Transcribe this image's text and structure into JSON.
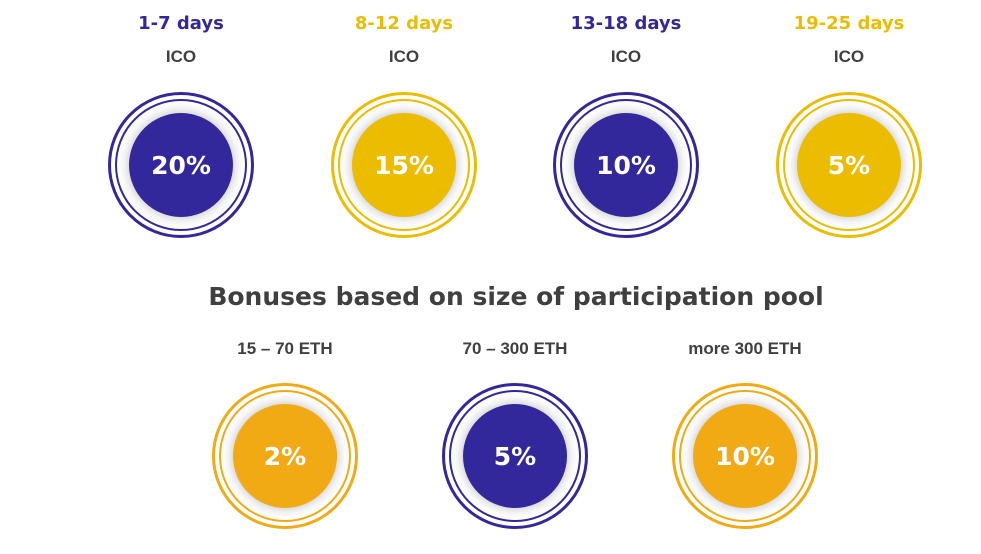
{
  "colors": {
    "purple": "#33279c",
    "gold_top": "#ecbc00",
    "gold_bottom": "#f2aa14",
    "text": "#3f3f3f"
  },
  "periods": [
    {
      "label": "1-7 days",
      "sub": "ICO",
      "bonus": "20%",
      "color": "#33279c"
    },
    {
      "label": "8-12 days",
      "sub": "ICO",
      "bonus": "15%",
      "color": "#ecbc00"
    },
    {
      "label": "13-18 days",
      "sub": "ICO",
      "bonus": "10%",
      "color": "#33279c"
    },
    {
      "label": "19-25 days",
      "sub": "ICO",
      "bonus": "5%",
      "color": "#ecbc00"
    }
  ],
  "pool_section": {
    "title": "Bonuses based on size of participation pool",
    "items": [
      {
        "label": "15 – 70 ETH",
        "bonus": "2%",
        "color": "#f2aa14"
      },
      {
        "label": "70 – 300 ETH",
        "bonus": "5%",
        "color": "#33279c"
      },
      {
        "label": "more 300 ETH",
        "bonus": "10%",
        "color": "#f2aa14"
      }
    ]
  }
}
